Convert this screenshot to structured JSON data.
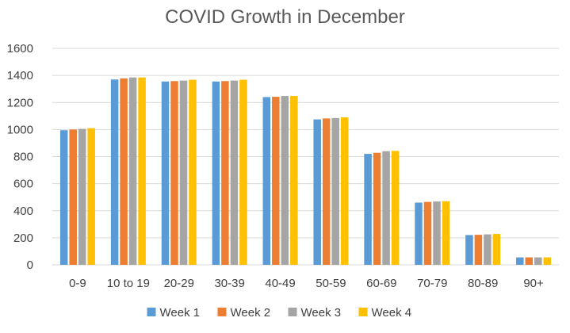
{
  "chart_data": {
    "type": "bar",
    "title": "COVID Growth in December",
    "xlabel": "",
    "ylabel": "",
    "categories": [
      "0-9",
      "10 to 19",
      "20-29",
      "30-39",
      "40-49",
      "50-59",
      "60-69",
      "70-79",
      "80-89",
      "90+"
    ],
    "series": [
      {
        "name": "Week 1",
        "color": "#5b9bd5",
        "values": [
          995,
          1370,
          1355,
          1355,
          1240,
          1075,
          820,
          460,
          220,
          55
        ]
      },
      {
        "name": "Week 2",
        "color": "#ed7d31",
        "values": [
          1000,
          1378,
          1358,
          1358,
          1242,
          1082,
          828,
          465,
          222,
          55
        ]
      },
      {
        "name": "Week 3",
        "color": "#a5a5a5",
        "values": [
          1005,
          1385,
          1362,
          1362,
          1248,
          1085,
          840,
          468,
          225,
          55
        ]
      },
      {
        "name": "Week 4",
        "color": "#ffc000",
        "values": [
          1010,
          1385,
          1368,
          1368,
          1248,
          1090,
          842,
          470,
          228,
          55
        ]
      }
    ],
    "ylim": [
      0,
      1600
    ],
    "yticks": [
      0,
      200,
      400,
      600,
      800,
      1000,
      1200,
      1400,
      1600
    ],
    "grid": true,
    "legend": "bottom"
  }
}
